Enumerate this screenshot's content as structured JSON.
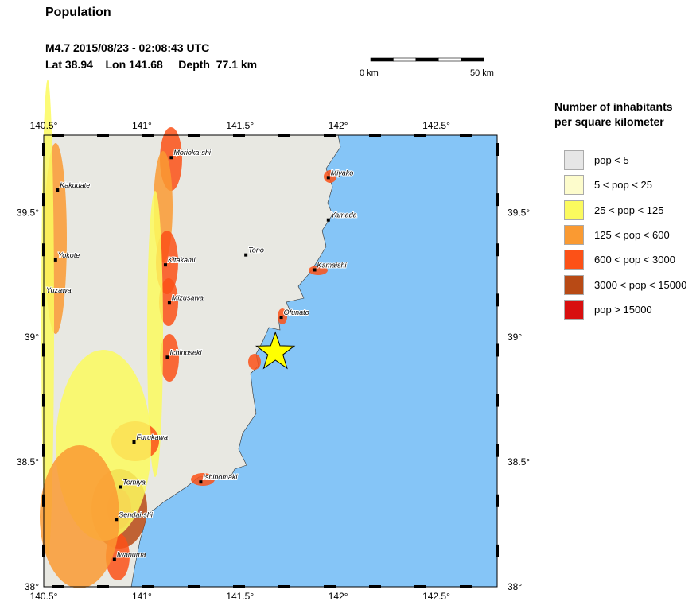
{
  "title": "Population",
  "event": {
    "line1": "M4.7  2015/08/23 - 02:08:43 UTC",
    "line2": "Lat 38.94    Lon 141.68     Depth  77.1 km",
    "lat": 38.94,
    "lon": 141.68,
    "marker": "star-icon",
    "marker_color": "#ffff00"
  },
  "scale_bar": {
    "start": "0 km",
    "end": "50 km"
  },
  "map": {
    "lon_range": [
      140.5,
      142.81
    ],
    "lat_range": [
      38.0,
      39.81
    ],
    "lon_ticks": [
      "140.5°",
      "141°",
      "141.5°",
      "142°",
      "142.5°"
    ],
    "lat_ticks": [
      "38°",
      "38.5°",
      "39°",
      "39.5°"
    ],
    "sea_color": "#85c5f7",
    "land_color": "#e8e8e2"
  },
  "legend": {
    "title_line1": "Number of inhabitants",
    "title_line2": "per square kilometer",
    "items": [
      {
        "label": "pop < 5",
        "color": "#e6e6e6"
      },
      {
        "label": "5 < pop < 25",
        "color": "#fdfccc"
      },
      {
        "label": "25 < pop < 125",
        "color": "#fbfa5e"
      },
      {
        "label": "125 < pop < 600",
        "color": "#fa9a32"
      },
      {
        "label": "600 < pop < 3000",
        "color": "#fc5117"
      },
      {
        "label": "3000 < pop < 15000",
        "color": "#b84a15"
      },
      {
        "label": "pop > 15000",
        "color": "#d80f0f"
      }
    ]
  },
  "cities": [
    {
      "name": "Morioka-shi",
      "lat": 39.72,
      "lon": 141.15
    },
    {
      "name": "Kakudate",
      "lat": 39.59,
      "lon": 140.57
    },
    {
      "name": "Miyako",
      "lat": 39.64,
      "lon": 141.95
    },
    {
      "name": "Yamada",
      "lat": 39.47,
      "lon": 141.95
    },
    {
      "name": "Yokote",
      "lat": 39.31,
      "lon": 140.56
    },
    {
      "name": "Tono",
      "lat": 39.33,
      "lon": 141.53
    },
    {
      "name": "Kitakami",
      "lat": 39.29,
      "lon": 141.12
    },
    {
      "name": "Kamaishi",
      "lat": 39.27,
      "lon": 141.88
    },
    {
      "name": "Yuzawa",
      "lat": 39.17,
      "lon": 140.5
    },
    {
      "name": "Mizusawa",
      "lat": 39.14,
      "lon": 141.14
    },
    {
      "name": "Ofunato",
      "lat": 39.08,
      "lon": 141.71
    },
    {
      "name": "Ichinoseki",
      "lat": 38.92,
      "lon": 141.13
    },
    {
      "name": "Furukawa",
      "lat": 38.58,
      "lon": 140.96
    },
    {
      "name": "Ishinomaki",
      "lat": 38.42,
      "lon": 141.3
    },
    {
      "name": "Tomiya",
      "lat": 38.4,
      "lon": 140.89
    },
    {
      "name": "Sendai-shi",
      "lat": 38.27,
      "lon": 140.87
    },
    {
      "name": "Iwanuma",
      "lat": 38.11,
      "lon": 140.86
    }
  ]
}
